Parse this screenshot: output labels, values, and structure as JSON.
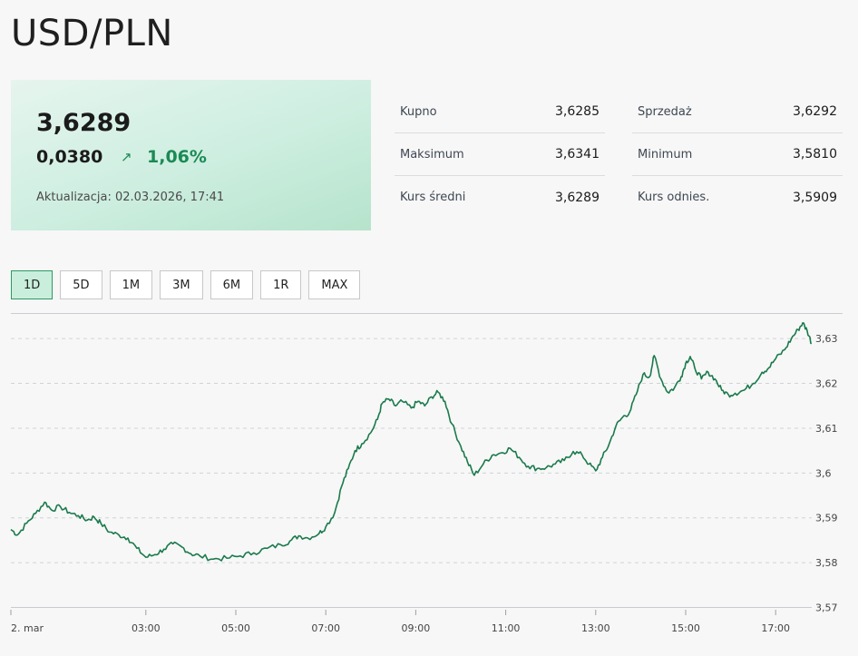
{
  "header": {
    "title": "USD/PLN"
  },
  "quote": {
    "price": "3,6289",
    "change_abs": "0,0380",
    "change_pct": "1,06%",
    "arrow_icon": "arrow-up-right-icon",
    "updated": "Aktualizacja: 02.03.2026, 17:41"
  },
  "stats": {
    "left": [
      {
        "label": "Kupno",
        "value": "3,6285"
      },
      {
        "label": "Maksimum",
        "value": "3,6341"
      },
      {
        "label": "Kurs średni",
        "value": "3,6289"
      }
    ],
    "right": [
      {
        "label": "Sprzedaż",
        "value": "3,6292"
      },
      {
        "label": "Minimum",
        "value": "3,5810"
      },
      {
        "label": "Kurs odnies.",
        "value": "3,5909"
      }
    ]
  },
  "ranges": {
    "items": [
      "1D",
      "5D",
      "1M",
      "3M",
      "6M",
      "1R",
      "MAX"
    ],
    "active": "1D"
  },
  "colors": {
    "accent": "#1a8a55",
    "line": "#1a7a4c",
    "card": "#cdeee0",
    "active_button": "#c9efdc"
  },
  "chart_data": {
    "type": "line",
    "title": "",
    "xlabel": "",
    "ylabel": "",
    "x_ticks": [
      {
        "label": "2. mar",
        "hour": 0
      },
      {
        "label": "03:00",
        "hour": 3
      },
      {
        "label": "05:00",
        "hour": 5
      },
      {
        "label": "07:00",
        "hour": 7
      },
      {
        "label": "09:00",
        "hour": 9
      },
      {
        "label": "11:00",
        "hour": 11
      },
      {
        "label": "13:00",
        "hour": 13
      },
      {
        "label": "15:00",
        "hour": 15
      },
      {
        "label": "17:00",
        "hour": 17
      }
    ],
    "y_ticks": [
      {
        "label": "3,57",
        "value": 3.57
      },
      {
        "label": "3,58",
        "value": 3.58
      },
      {
        "label": "3,59",
        "value": 3.59
      },
      {
        "label": "3,6",
        "value": 3.6
      },
      {
        "label": "3,61",
        "value": 3.61
      },
      {
        "label": "3,62",
        "value": 3.62
      },
      {
        "label": "3,63",
        "value": 3.63
      }
    ],
    "xlim": [
      0,
      17.8
    ],
    "ylim": [
      3.5695,
      3.6355
    ],
    "series": [
      {
        "name": "USD/PLN",
        "points": [
          [
            0.0,
            3.5874
          ],
          [
            0.15,
            3.5862
          ],
          [
            0.35,
            3.5888
          ],
          [
            0.55,
            3.591
          ],
          [
            0.75,
            3.5935
          ],
          [
            0.9,
            3.5918
          ],
          [
            1.1,
            3.5925
          ],
          [
            1.3,
            3.5912
          ],
          [
            1.5,
            3.5905
          ],
          [
            1.7,
            3.5895
          ],
          [
            1.85,
            3.5902
          ],
          [
            2.0,
            3.5888
          ],
          [
            2.2,
            3.5868
          ],
          [
            2.4,
            3.5862
          ],
          [
            2.6,
            3.5855
          ],
          [
            2.8,
            3.5832
          ],
          [
            3.0,
            3.5812
          ],
          [
            3.2,
            3.5818
          ],
          [
            3.4,
            3.583
          ],
          [
            3.6,
            3.5842
          ],
          [
            3.8,
            3.5835
          ],
          [
            4.0,
            3.582
          ],
          [
            4.2,
            3.5815
          ],
          [
            4.5,
            3.5808
          ],
          [
            4.8,
            3.581
          ],
          [
            5.1,
            3.5815
          ],
          [
            5.4,
            3.5822
          ],
          [
            5.7,
            3.5832
          ],
          [
            6.0,
            3.584
          ],
          [
            6.2,
            3.5848
          ],
          [
            6.4,
            3.586
          ],
          [
            6.6,
            3.5855
          ],
          [
            6.85,
            3.5865
          ],
          [
            7.0,
            3.588
          ],
          [
            7.2,
            3.5912
          ],
          [
            7.35,
            3.597
          ],
          [
            7.5,
            3.601
          ],
          [
            7.65,
            3.605
          ],
          [
            7.8,
            3.6065
          ],
          [
            8.0,
            3.609
          ],
          [
            8.15,
            3.612
          ],
          [
            8.25,
            3.6155
          ],
          [
            8.4,
            3.6165
          ],
          [
            8.55,
            3.615
          ],
          [
            8.7,
            3.616
          ],
          [
            8.9,
            3.6145
          ],
          [
            9.05,
            3.616
          ],
          [
            9.2,
            3.615
          ],
          [
            9.35,
            3.617
          ],
          [
            9.5,
            3.618
          ],
          [
            9.65,
            3.616
          ],
          [
            9.8,
            3.611
          ],
          [
            10.0,
            3.606
          ],
          [
            10.15,
            3.6025
          ],
          [
            10.3,
            3.5995
          ],
          [
            10.5,
            3.602
          ],
          [
            10.7,
            3.604
          ],
          [
            10.9,
            3.6045
          ],
          [
            11.1,
            3.6055
          ],
          [
            11.3,
            3.6035
          ],
          [
            11.5,
            3.6015
          ],
          [
            11.7,
            3.601
          ],
          [
            11.9,
            3.6012
          ],
          [
            12.1,
            3.602
          ],
          [
            12.3,
            3.6028
          ],
          [
            12.5,
            3.6048
          ],
          [
            12.7,
            3.604
          ],
          [
            12.85,
            3.602
          ],
          [
            13.0,
            3.6005
          ],
          [
            13.15,
            3.6035
          ],
          [
            13.3,
            3.6065
          ],
          [
            13.45,
            3.6105
          ],
          [
            13.6,
            3.6125
          ],
          [
            13.75,
            3.6135
          ],
          [
            13.9,
            3.6175
          ],
          [
            14.05,
            3.622
          ],
          [
            14.2,
            3.6215
          ],
          [
            14.3,
            3.6262
          ],
          [
            14.45,
            3.621
          ],
          [
            14.6,
            3.618
          ],
          [
            14.75,
            3.619
          ],
          [
            14.9,
            3.6215
          ],
          [
            15.0,
            3.6245
          ],
          [
            15.1,
            3.626
          ],
          [
            15.2,
            3.6235
          ],
          [
            15.35,
            3.621
          ],
          [
            15.5,
            3.6225
          ],
          [
            15.65,
            3.621
          ],
          [
            15.8,
            3.6185
          ],
          [
            15.95,
            3.6175
          ],
          [
            16.1,
            3.6178
          ],
          [
            16.3,
            3.6185
          ],
          [
            16.5,
            3.62
          ],
          [
            16.7,
            3.6225
          ],
          [
            16.85,
            3.6235
          ],
          [
            17.0,
            3.6255
          ],
          [
            17.2,
            3.6275
          ],
          [
            17.35,
            3.63
          ],
          [
            17.5,
            3.632
          ],
          [
            17.6,
            3.6335
          ],
          [
            17.7,
            3.6318
          ],
          [
            17.8,
            3.6289
          ]
        ]
      }
    ]
  }
}
